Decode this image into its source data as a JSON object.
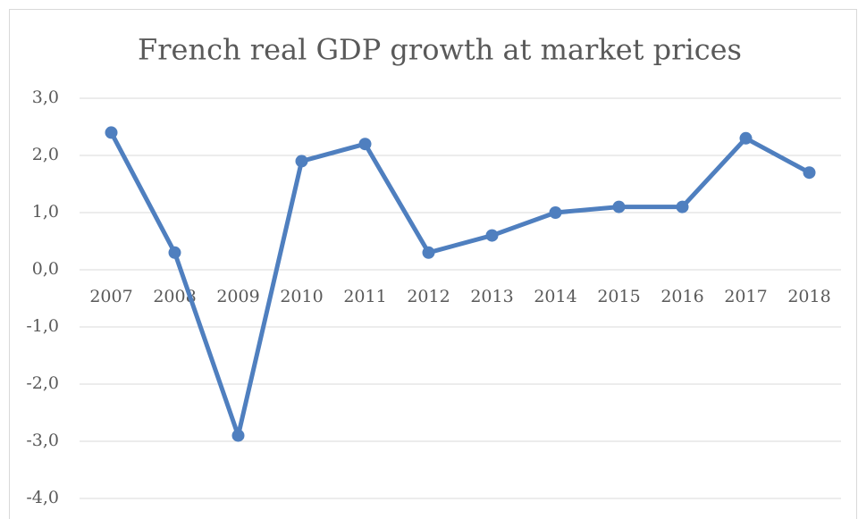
{
  "chart_data": {
    "type": "line",
    "title": "French real GDP growth at market prices",
    "categories": [
      "2007",
      "2008",
      "2009",
      "2010",
      "2011",
      "2012",
      "2013",
      "2014",
      "2015",
      "2016",
      "2017",
      "2018"
    ],
    "values": [
      2.4,
      0.3,
      -2.9,
      1.9,
      2.2,
      0.3,
      0.6,
      1.0,
      1.1,
      1.1,
      2.3,
      1.7
    ],
    "color": "#4f7fbf",
    "ylim": [
      -4,
      3
    ],
    "yticks": [
      {
        "value": -4,
        "label": "-4,0"
      },
      {
        "value": -3,
        "label": "-3,0"
      },
      {
        "value": -2,
        "label": "-2,0"
      },
      {
        "value": -1,
        "label": "-1,0"
      },
      {
        "value": 0,
        "label": "0,0"
      },
      {
        "value": 1,
        "label": "1,0"
      },
      {
        "value": 2,
        "label": "2,0"
      },
      {
        "value": 3,
        "label": "3,0"
      }
    ],
    "grid": true
  }
}
